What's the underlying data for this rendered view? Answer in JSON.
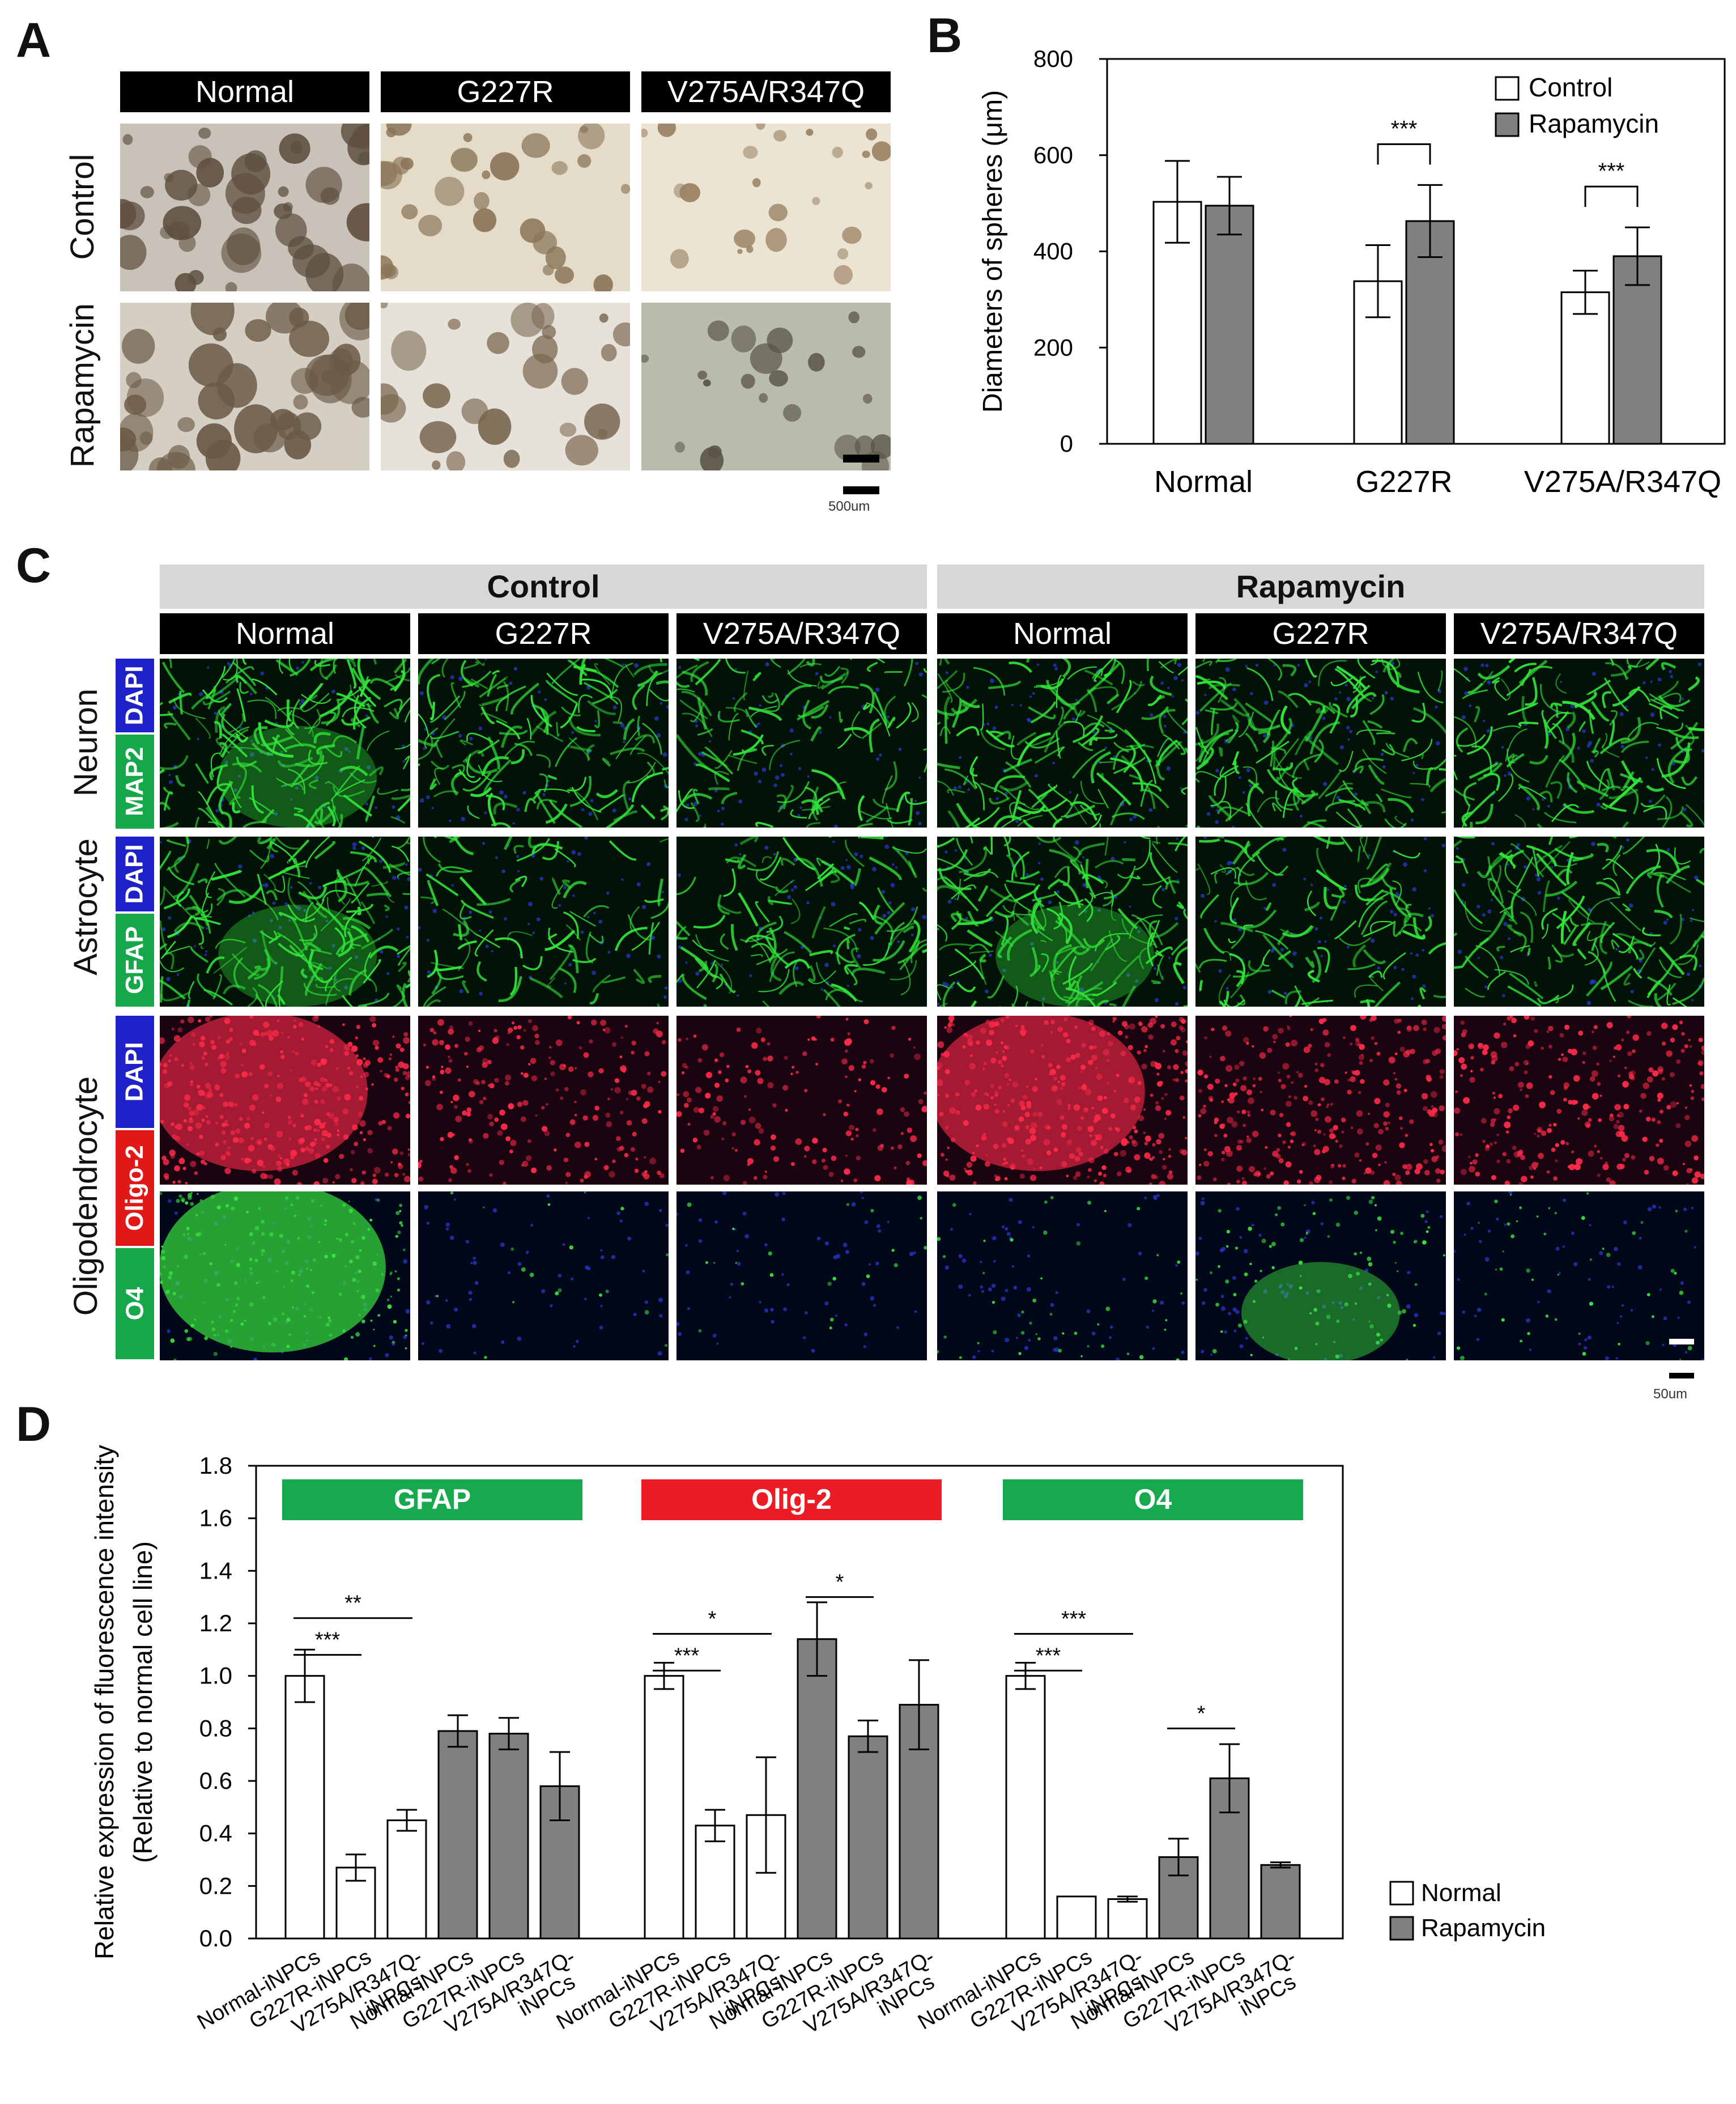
{
  "panel_letters": {
    "a": "A",
    "b": "B",
    "c": "C",
    "d": "D"
  },
  "panel_a": {
    "columns": [
      "Normal",
      "G227R",
      "V275A/R347Q"
    ],
    "rows": [
      "Control",
      "Rapamycin"
    ],
    "scale_bar": "500um",
    "palettes": [
      {
        "bg": "#c9c2b8",
        "blob": "#5e4f3f"
      },
      {
        "bg": "#e4dcc9",
        "blob": "#8a7558"
      },
      {
        "bg": "#ece4d3",
        "blob": "#9a8264"
      },
      {
        "bg": "#d5cec2",
        "blob": "#6a5a46"
      },
      {
        "bg": "#e6e2da",
        "blob": "#7a664e"
      },
      {
        "bg": "#b8bcad",
        "blob": "#5a5446"
      }
    ]
  },
  "panel_b": {
    "legend": [
      "Control",
      "Rapamycin"
    ],
    "sig": [
      "***",
      "***"
    ]
  },
  "panel_c": {
    "groups": [
      "Control",
      "Rapamycin"
    ],
    "columns": [
      "Normal",
      "G227R",
      "V275A/R347Q"
    ],
    "row_groups": [
      "Neuron",
      "Astrocyte",
      "Oligodendrocyte"
    ],
    "stains": [
      "DAPI",
      "MAP2",
      "DAPI",
      "GFAP",
      "DAPI",
      "Oligo-2",
      "O4"
    ],
    "stain_colors": {
      "blue": "#1e22c8",
      "green": "#14a84a",
      "red": "#e01818"
    },
    "scale_bar": "50um"
  },
  "panel_d": {
    "legend": [
      "Normal",
      "Rapamycin"
    ],
    "sig": [
      "**",
      "***",
      "*",
      "***",
      "*",
      "***",
      "***",
      "*"
    ]
  },
  "chart_data": [
    {
      "type": "bar",
      "categories": [
        "Normal",
        "G227R",
        "V275A/R347Q"
      ],
      "series": [
        {
          "name": "Control",
          "values": [
            503,
            338,
            315
          ],
          "errors": [
            85,
            75,
            45
          ]
        },
        {
          "name": "Rapamycin",
          "values": [
            495,
            463,
            390
          ],
          "errors": [
            60,
            75,
            60
          ]
        }
      ],
      "ylabel": "Diameters of spheres (μm)",
      "yticks": [
        0,
        200,
        400,
        600,
        800
      ],
      "ylim": [
        0,
        800
      ],
      "colors": {
        "Control": "#ffffff",
        "Rapamycin": "#808080"
      },
      "significance": [
        {
          "category": "G227R",
          "label": "***"
        },
        {
          "category": "V275A/R347Q",
          "label": "***"
        }
      ]
    },
    {
      "type": "bar",
      "groups": [
        "GFAP",
        "Olig-2",
        "O4"
      ],
      "group_colors": [
        "#18a84e",
        "#ec1c24",
        "#18a84e"
      ],
      "x_labels": [
        "Normal-iNPCs",
        "G227R-iNPCs",
        "V275A/R347Q-iNPCs",
        "Normal-iNPCs",
        "G227R-iNPCs",
        "V275A/R347Q-iNPCs"
      ],
      "series": [
        {
          "name": "Normal",
          "values": [
            [
              1.0,
              0.27,
              0.45
            ],
            [
              1.0,
              0.43,
              0.47
            ],
            [
              1.0,
              0.16,
              0.15
            ]
          ],
          "errors": [
            [
              0.1,
              0.05,
              0.04
            ],
            [
              0.05,
              0.06,
              0.22
            ],
            [
              0.05,
              0.0,
              0.01
            ]
          ]
        },
        {
          "name": "Rapamycin",
          "values": [
            [
              0.79,
              0.78,
              0.58
            ],
            [
              1.14,
              0.77,
              0.89
            ],
            [
              0.31,
              0.61,
              0.28
            ]
          ],
          "errors": [
            [
              0.06,
              0.06,
              0.13
            ],
            [
              0.14,
              0.06,
              0.17
            ],
            [
              0.07,
              0.13,
              0.01
            ]
          ]
        }
      ],
      "ylabel": "Relative expression of fluorescence intensity",
      "ylabel2": "(Relative to normal cell line)",
      "yticks": [
        "0.0",
        "0.2",
        "0.4",
        "0.6",
        "0.8",
        "1.0",
        "1.2",
        "1.4",
        "1.6",
        "1.8"
      ],
      "ylim": [
        0,
        1.8
      ],
      "colors": {
        "Normal": "#ffffff",
        "Rapamycin": "#808080"
      }
    }
  ]
}
